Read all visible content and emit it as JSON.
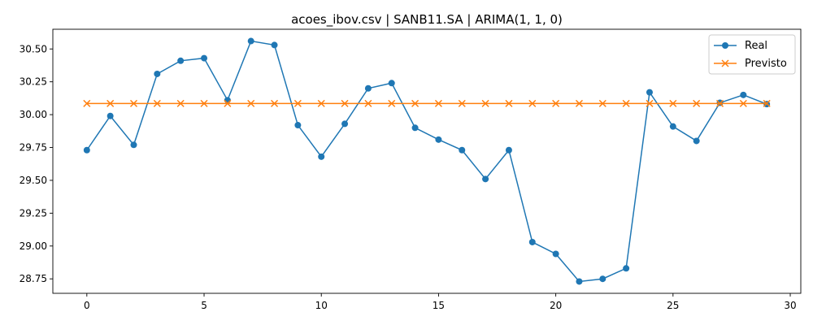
{
  "chart_data": {
    "type": "line",
    "title": "acoes_ibov.csv | SANB11.SA | ARIMA(1, 1, 0)",
    "xlabel": "",
    "ylabel": "",
    "xlim": [
      -1.45,
      30.45
    ],
    "ylim": [
      28.64,
      30.65
    ],
    "xticks": [
      0,
      5,
      10,
      15,
      20,
      25,
      30
    ],
    "xtick_labels": [
      "0",
      "5",
      "10",
      "15",
      "20",
      "25",
      "30"
    ],
    "yticks": [
      28.75,
      29.0,
      29.25,
      29.5,
      29.75,
      30.0,
      30.25,
      30.5
    ],
    "ytick_labels": [
      "28.75",
      "29.00",
      "29.25",
      "29.50",
      "29.75",
      "30.00",
      "30.25",
      "30.50"
    ],
    "grid": false,
    "legend_position": "top-right",
    "x": [
      0,
      1,
      2,
      3,
      4,
      5,
      6,
      7,
      8,
      9,
      10,
      11,
      12,
      13,
      14,
      15,
      16,
      17,
      18,
      19,
      20,
      21,
      22,
      23,
      24,
      25,
      26,
      27,
      28,
      29
    ],
    "series": [
      {
        "name": "Real",
        "color": "#1f77b4",
        "marker": "circle",
        "values": [
          29.73,
          29.99,
          29.77,
          30.31,
          30.41,
          30.43,
          30.11,
          30.56,
          30.53,
          29.92,
          29.68,
          29.93,
          30.2,
          30.24,
          29.9,
          29.81,
          29.73,
          29.51,
          29.73,
          29.03,
          28.94,
          28.73,
          28.75,
          28.83,
          30.17,
          29.91,
          29.8,
          30.09,
          30.15,
          30.08
        ]
      },
      {
        "name": "Previsto",
        "color": "#ff7f0e",
        "marker": "x",
        "values": [
          30.085,
          30.085,
          30.085,
          30.085,
          30.085,
          30.085,
          30.085,
          30.085,
          30.085,
          30.085,
          30.085,
          30.085,
          30.085,
          30.085,
          30.085,
          30.085,
          30.085,
          30.085,
          30.085,
          30.085,
          30.085,
          30.085,
          30.085,
          30.085,
          30.085,
          30.085,
          30.085,
          30.085,
          30.085,
          30.085
        ]
      }
    ]
  }
}
